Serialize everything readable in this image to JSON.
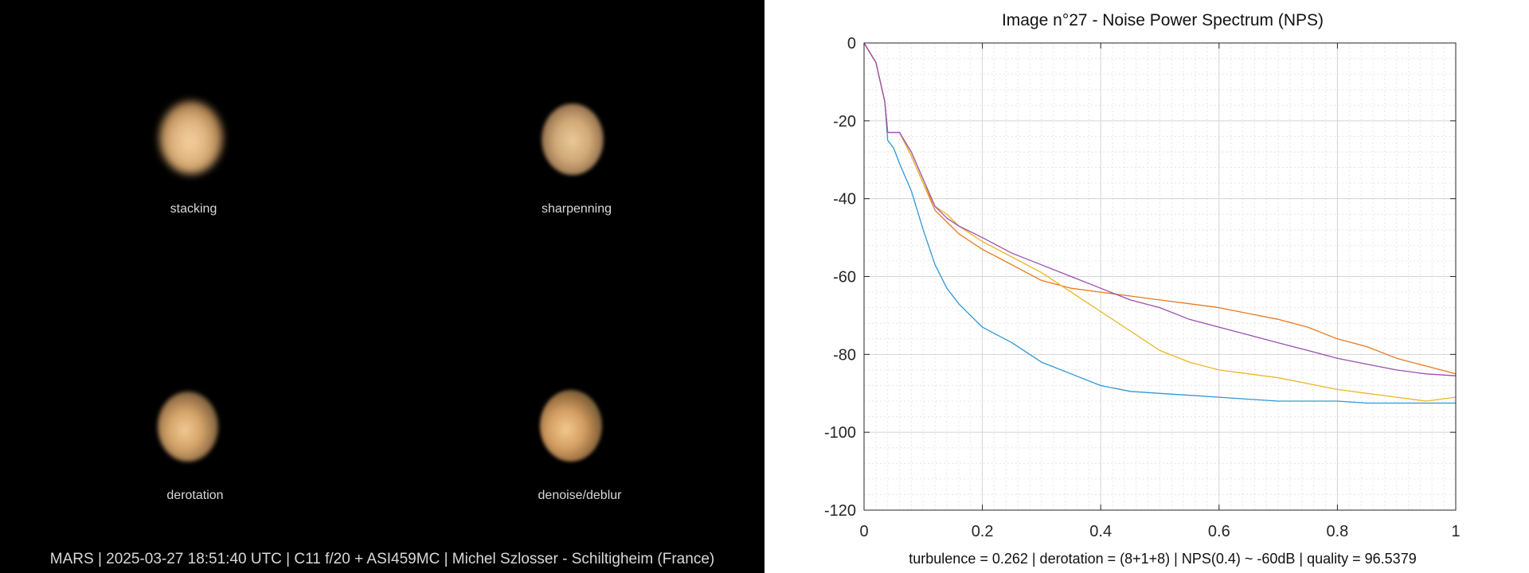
{
  "panels": {
    "stacking_label": "stacking",
    "sharpening_label": "sharpenning",
    "derotation_label": "derotation",
    "denoise_label": "denoise/deblur"
  },
  "footer": "MARS | 2025-03-27  18:51:40 UTC | C11 f/20 + ASI459MC | Michel Szlosser - Schiltigheim (France)",
  "colors": {
    "background_left": "#000000",
    "grid": "#dcdcdc"
  },
  "chart_data": {
    "type": "line",
    "title": "Image n°27 - Noise Power Spectrum (NPS)",
    "xlabel": "",
    "ylabel": "",
    "xlim": [
      0,
      1
    ],
    "ylim": [
      -120,
      0
    ],
    "xticks": [
      0,
      0.2,
      0.4,
      0.6,
      0.8,
      1
    ],
    "xtick_labels": [
      "0",
      "0.2",
      "0.4",
      "0.6",
      "0.8",
      "1"
    ],
    "yticks": [
      0,
      -20,
      -40,
      -60,
      -80,
      -100,
      -120
    ],
    "ytick_labels": [
      "0",
      "-20",
      "-40",
      "-60",
      "-80",
      "-100",
      "-120"
    ],
    "grid": true,
    "footer": "turbulence = 0.262 | derotation = (8+1+8) | NPS(0.4) ~ -60dB |  quality = 96.5379",
    "series": [
      {
        "color": "#2f97d6",
        "x": [
          0,
          0.02,
          0.035,
          0.04,
          0.05,
          0.06,
          0.08,
          0.1,
          0.12,
          0.14,
          0.16,
          0.18,
          0.2,
          0.25,
          0.3,
          0.35,
          0.4,
          0.45,
          0.5,
          0.55,
          0.6,
          0.65,
          0.7,
          0.75,
          0.8,
          0.85,
          0.9,
          0.95,
          1.0
        ],
        "y": [
          0,
          -5,
          -15,
          -25,
          -27,
          -31,
          -38,
          -48,
          -57,
          -63,
          -67,
          -70,
          -73,
          -77,
          -82,
          -85,
          -88,
          -89.5,
          -90,
          -90.5,
          -91,
          -91.5,
          -92,
          -92,
          -92,
          -92.5,
          -92.5,
          -92.5,
          -92.5
        ]
      },
      {
        "color": "#e8791f",
        "x": [
          0,
          0.02,
          0.035,
          0.04,
          0.05,
          0.06,
          0.08,
          0.1,
          0.12,
          0.14,
          0.16,
          0.18,
          0.2,
          0.25,
          0.3,
          0.35,
          0.4,
          0.45,
          0.5,
          0.55,
          0.6,
          0.65,
          0.7,
          0.75,
          0.8,
          0.85,
          0.9,
          0.95,
          1.0
        ],
        "y": [
          0,
          -5,
          -15,
          -23,
          -23,
          -23,
          -29,
          -36,
          -43,
          -46,
          -49,
          -51,
          -53,
          -57,
          -61,
          -63,
          -64,
          -65,
          -66,
          -67,
          -68,
          -69.5,
          -71,
          -73,
          -76,
          -78,
          -81,
          -83,
          -85
        ]
      },
      {
        "color": "#edb621",
        "x": [
          0,
          0.02,
          0.035,
          0.04,
          0.05,
          0.06,
          0.08,
          0.1,
          0.12,
          0.14,
          0.16,
          0.18,
          0.2,
          0.25,
          0.3,
          0.35,
          0.4,
          0.45,
          0.5,
          0.55,
          0.6,
          0.65,
          0.7,
          0.75,
          0.8,
          0.85,
          0.9,
          0.95,
          1.0
        ],
        "y": [
          0,
          -5,
          -15,
          -23,
          -23,
          -23,
          -29,
          -36,
          -42,
          -44,
          -47,
          -49,
          -51,
          -55,
          -59,
          -64,
          -69,
          -74,
          -79,
          -82,
          -84,
          -85,
          -86,
          -87.5,
          -89,
          -90,
          -91,
          -92,
          -91
        ]
      },
      {
        "color": "#9a4fb0",
        "x": [
          0,
          0.02,
          0.035,
          0.04,
          0.05,
          0.06,
          0.08,
          0.1,
          0.12,
          0.14,
          0.16,
          0.18,
          0.2,
          0.25,
          0.3,
          0.35,
          0.4,
          0.45,
          0.5,
          0.55,
          0.6,
          0.65,
          0.7,
          0.75,
          0.8,
          0.85,
          0.9,
          0.95,
          1.0
        ],
        "y": [
          0,
          -5,
          -15,
          -23,
          -23,
          -23,
          -28,
          -35,
          -42,
          -45,
          -47,
          -48.5,
          -50,
          -54,
          -57,
          -60,
          -63,
          -66,
          -68,
          -71,
          -73,
          -75,
          -77,
          -79,
          -81,
          -82.5,
          -84,
          -85,
          -85.5
        ]
      }
    ]
  }
}
